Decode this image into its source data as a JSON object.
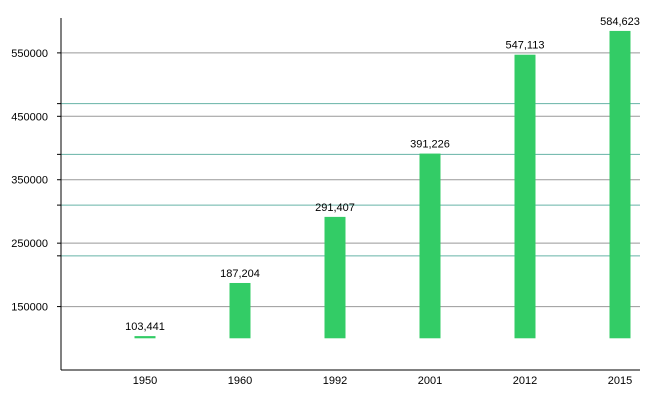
{
  "chart_data": {
    "type": "bar",
    "categories": [
      "1950",
      "1960",
      "1992",
      "2001",
      "2012",
      "2015"
    ],
    "values": [
      103441,
      187204,
      291407,
      391226,
      547113,
      584623
    ],
    "data_labels": [
      "103,441",
      "187,204",
      "291,407",
      "391,226",
      "547,113",
      "584,623"
    ],
    "ytick_values": [
      150000,
      250000,
      350000,
      450000,
      550000
    ],
    "ytick_labels": [
      "150000",
      "250000",
      "350000",
      "450000",
      "550000"
    ],
    "minor_grid_values": [
      230000,
      310000,
      390000,
      470000
    ],
    "ylim": [
      50000,
      605000
    ],
    "bar_baseline": 100000,
    "grid": true,
    "colors": {
      "bar": "#33cc66",
      "grid": "#999999",
      "minor_grid": "#66b3a6",
      "axis": "#000000"
    }
  }
}
